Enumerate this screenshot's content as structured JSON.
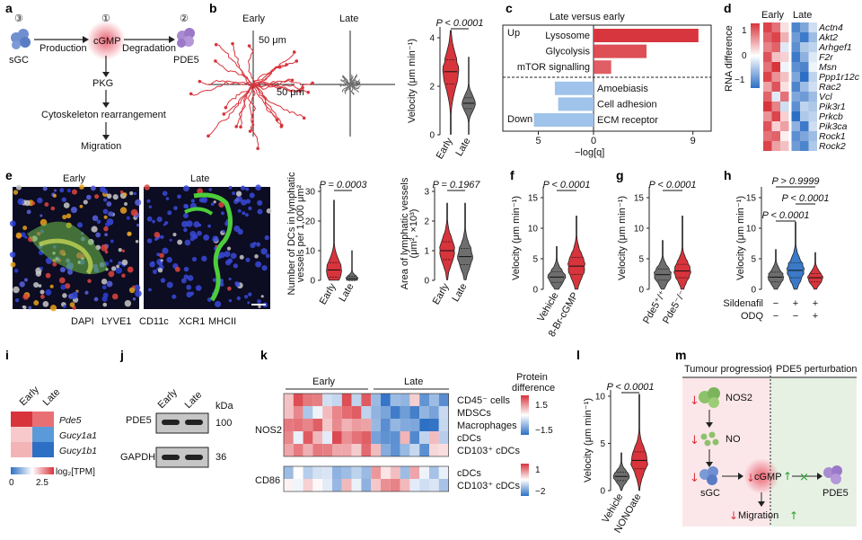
{
  "colors": {
    "red": "#d8343c",
    "gray": "#6e6e6e",
    "blue": "#3b7ac8",
    "lightred": "#f4a0a3",
    "lightblue": "#9fc3ea"
  },
  "panel_a": {
    "label": "a",
    "n_sgc": "③",
    "n_cgmp": "①",
    "n_pde5": "②",
    "sgc": "sGC",
    "cgmp": "cGMP",
    "pde5": "PDE5",
    "production": "Production",
    "degradation": "Degradation",
    "pkg": "PKG",
    "cyto": "Cytoskeleton rearrangement",
    "migration": "Migration"
  },
  "panel_b": {
    "label": "b",
    "early": "Early",
    "late": "Late",
    "scale1": "50 μm",
    "scale2": "50 μm",
    "ylabel": "Velocity (μm min⁻¹)",
    "p": "P < 0.0001",
    "xt1": "Early",
    "xt2": "Late",
    "ticks": [
      "0",
      "2",
      "4"
    ]
  },
  "panel_c": {
    "label": "c",
    "title": "Late versus early",
    "up": "Up",
    "down": "Down",
    "xlabel": "−log[q]",
    "xticks": [
      "5",
      "0",
      "9"
    ]
  },
  "chart_data": [
    {
      "type": "bar",
      "panel": "c",
      "title": "Late versus early",
      "categories": [
        "Lysosome",
        "Glycolysis",
        "mTOR signalling",
        "Amoebiasis",
        "Cell adhesion",
        "ECM receptor"
      ],
      "values": [
        9.5,
        4.8,
        1.6,
        -3.5,
        -3.2,
        -5.4
      ],
      "xlabel": "−log[q]"
    },
    {
      "type": "heatmap",
      "panel": "d",
      "genes": [
        "Actn4",
        "Akt2",
        "Arhgef1",
        "F2r",
        "Msn",
        "Ppp1r12c",
        "Rac2",
        "Vcl",
        "Pik3r1",
        "Prkcb",
        "Pik3ca",
        "Rock1",
        "Rock2"
      ],
      "columns": [
        "Early",
        "Early",
        "Early",
        "Late",
        "Late",
        "Late"
      ],
      "values": [
        [
          1.2,
          0.9,
          0.2,
          -1.1,
          -0.8,
          -0.3
        ],
        [
          1,
          1.2,
          0.5,
          -0.9,
          -1.2,
          -0.6
        ],
        [
          0.8,
          1,
          -0.2,
          -1,
          -0.5,
          -0.4
        ],
        [
          1.1,
          0.4,
          0.3,
          -1.2,
          -0.7,
          -0.2
        ],
        [
          0.9,
          1.3,
          -0.1,
          -1,
          -1.1,
          -0.1
        ],
        [
          1.2,
          0.7,
          0.4,
          -0.8,
          -1.3,
          -0.4
        ],
        [
          0.6,
          1.1,
          0.2,
          -1.1,
          -0.6,
          -0.3
        ],
        [
          1,
          -0.2,
          0.9,
          -0.8,
          -0.9,
          -0.6
        ],
        [
          1.3,
          0.8,
          -0.3,
          -1,
          -0.4,
          -0.5
        ],
        [
          0.7,
          1.2,
          0.3,
          -1.3,
          -0.5,
          -0.4
        ],
        [
          1.1,
          0.3,
          0.6,
          -0.7,
          -1.2,
          -0.3
        ],
        [
          0.9,
          1,
          0.1,
          -1,
          -0.8,
          -0.6
        ],
        [
          1.2,
          0.6,
          0.4,
          -0.9,
          -1.1,
          -0.5
        ]
      ]
    }
  ],
  "panel_d": {
    "label": "d",
    "early": "Early",
    "late": "Late",
    "cb_label": "RNA difference",
    "cb_ticks": [
      "1",
      "0",
      "−1"
    ],
    "genes": [
      "Actn4",
      "Akt2",
      "Arhgef1",
      "F2r",
      "Msn",
      "Ppp1r12c",
      "Rac2",
      "Vcl",
      "Pik3r1",
      "Prkcb",
      "Pik3ca",
      "Rock1",
      "Rock2"
    ]
  },
  "panel_e": {
    "label": "e",
    "early": "Early",
    "late": "Late",
    "stains": [
      {
        "t": "DAPI",
        "c": "#2d3fd8"
      },
      {
        "t": "LYVE1",
        "c": "#23a123"
      },
      {
        "t": "CD11c",
        "c": "#d8343c"
      },
      {
        "t": "XCR1",
        "c": "#e8a21b"
      },
      {
        "t": "MHCII",
        "c": "#999999"
      }
    ],
    "plot1": {
      "ylabel1": "Number of DCs in lymphatic",
      "ylabel2": "vessels per 1,000 μm²",
      "p": "P = 0.0003",
      "ticks": [
        "0",
        "10",
        "20",
        "30"
      ],
      "xt1": "Early",
      "xt2": "Late"
    },
    "plot2": {
      "ylabel1": "Area of lymphatic vessels",
      "ylabel2": "(μm², ×10³)",
      "p": "P = 0.1967",
      "ticks": [
        "0",
        "1",
        "2",
        "3"
      ],
      "xt1": "Early",
      "xt2": "Late"
    }
  },
  "panel_f": {
    "label": "f",
    "p": "P < 0.0001",
    "ylabel": "Velocity (μm min⁻¹)",
    "ticks": [
      "0",
      "5",
      "10",
      "15"
    ],
    "xt1": "Vehicle",
    "xt2": "8-Br-cGMP"
  },
  "panel_g": {
    "label": "g",
    "p": "P < 0.0001",
    "ylabel": "Velocity (μm min⁻¹)",
    "ticks": [
      "0",
      "5",
      "10",
      "15"
    ],
    "xt1": "Pde5⁺/⁺",
    "xt2": "Pde5⁻/⁻"
  },
  "panel_h": {
    "label": "h",
    "p1": "P > 0.9999",
    "p2": "P < 0.0001",
    "p3": "P < 0.0001",
    "ylabel": "Velocity (μm min⁻¹)",
    "ticks": [
      "0",
      "5",
      "10",
      "15"
    ],
    "row1": "Sildenafil",
    "row2": "ODQ",
    "r1": [
      "−",
      "+",
      "+"
    ],
    "r2": [
      "−",
      "−",
      "+"
    ]
  },
  "panel_i": {
    "label": "i",
    "early": "Early",
    "late": "Late",
    "genes": [
      "Pde5",
      "Gucy1a1",
      "Gucy1b1"
    ],
    "cb_label": "log₂[TPM]",
    "cb_ticks": [
      "0",
      "2.5"
    ]
  },
  "panel_j": {
    "label": "j",
    "early": "Early",
    "late": "Late",
    "kda": "kDa",
    "rows": [
      {
        "name": "PDE5",
        "kda": "100"
      },
      {
        "name": "GAPDH",
        "kda": "36"
      }
    ]
  },
  "panel_k": {
    "label": "k",
    "early": "Early",
    "late": "Late",
    "nos2": "NOS2",
    "cd86": "CD86",
    "cb_title1": "Protein",
    "cb_title2": "difference",
    "cb1": [
      "1.5",
      "−1.5"
    ],
    "cb2": [
      "1",
      "−2"
    ],
    "rows_nos2": [
      "CD45⁻ cells",
      "MDSCs",
      "Macrophages",
      "cDCs",
      "CD103⁺ cDCs"
    ],
    "rows_cd86": [
      "cDCs",
      "CD103⁺ cDCs"
    ]
  },
  "panel_l": {
    "label": "l",
    "p": "P < 0.0001",
    "ylabel": "Velocity (μm min⁻¹)",
    "ticks": [
      "0",
      "5",
      "10"
    ],
    "xt1": "Vehicle",
    "xt2": "NONOate"
  },
  "panel_m": {
    "label": "m",
    "hdr1": "Tumour progression",
    "hdr2": "PDE5 perturbation",
    "nos2": "NOS2",
    "no": "NO",
    "sgc": "sGC",
    "cgmp": "cGMP",
    "pde5": "PDE5",
    "migration": "Migration"
  }
}
